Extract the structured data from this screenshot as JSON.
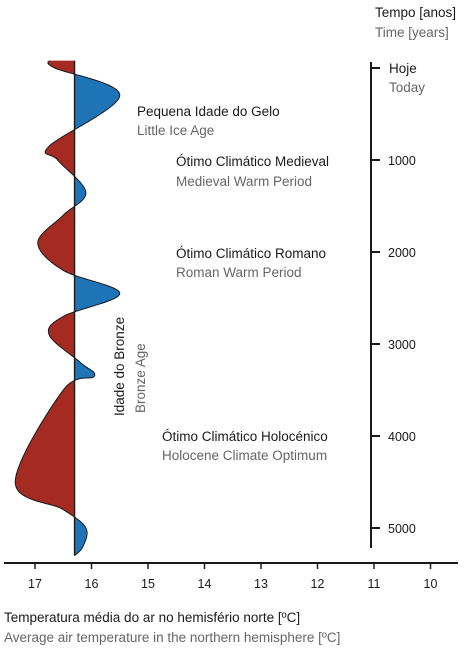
{
  "colors": {
    "warm": "#a52a22",
    "cold": "#1f74b8",
    "axis": "#1a1a1a"
  },
  "time_axis": {
    "title_pt": "Tempo [anos]",
    "title_en": "Time [years]",
    "today_pt": "Hoje",
    "today_en": "Today",
    "ticks": [
      "1000",
      "2000",
      "3000",
      "4000",
      "5000"
    ]
  },
  "temp_axis": {
    "title_pt": "Temperatura média do ar no hemisfério norte [ºC]",
    "title_en": "Average air temperature in the northern hemisphere [ºC]",
    "ticks": [
      "17",
      "16",
      "15",
      "14",
      "13",
      "12",
      "11",
      "10"
    ]
  },
  "periods": [
    {
      "pt": "Pequena Idade do Gelo",
      "en": "Little Ice Age"
    },
    {
      "pt": "Ótimo Climático Medieval",
      "en": "Medieval Warm Period"
    },
    {
      "pt": "Ótimo Climático Romano",
      "en": "Roman Warm Period"
    },
    {
      "pt": "Ótimo Climático Holocénico",
      "en": "Holocene Climate Optimum"
    }
  ],
  "bronze_age": {
    "pt": "Idade do Bronze",
    "en": "Bronze Age"
  },
  "curve": {
    "baseline_temp": 16.3,
    "points": [
      {
        "years": -80,
        "temp": 16.75
      },
      {
        "years": 0,
        "temp": 16.65
      },
      {
        "years": 300,
        "temp": 15.5
      },
      {
        "years": 850,
        "temp": 16.75
      },
      {
        "years": 1000,
        "temp": 16.6
      },
      {
        "years": 1350,
        "temp": 16.1
      },
      {
        "years": 1600,
        "temp": 16.5
      },
      {
        "years": 1900,
        "temp": 16.95
      },
      {
        "years": 2200,
        "temp": 16.5
      },
      {
        "years": 2450,
        "temp": 15.5
      },
      {
        "years": 2700,
        "temp": 16.5
      },
      {
        "years": 2900,
        "temp": 16.75
      },
      {
        "years": 3200,
        "temp": 16.2
      },
      {
        "years": 3350,
        "temp": 15.95
      },
      {
        "years": 3500,
        "temp": 16.5
      },
      {
        "years": 4500,
        "temp": 17.35
      },
      {
        "years": 4800,
        "temp": 16.5
      },
      {
        "years": 5000,
        "temp": 16.1
      },
      {
        "years": 5200,
        "temp": 16.15
      },
      {
        "years": 5300,
        "temp": 16.3
      }
    ]
  }
}
